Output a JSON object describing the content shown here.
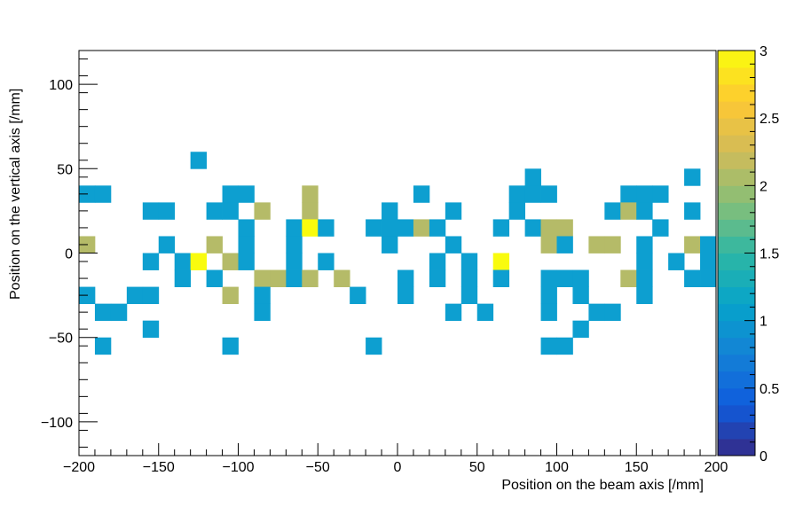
{
  "chart_data": {
    "type": "heatmap",
    "title": "",
    "xlabel": "Position on the beam axis [/mm]",
    "ylabel": "Position on the vertical axis [/mm]",
    "xlim": [
      -200,
      200
    ],
    "ylim": [
      -120,
      120
    ],
    "bin_width": 10,
    "bin_height": 10,
    "x_ticks": [
      -200,
      -150,
      -100,
      -50,
      0,
      50,
      100,
      150,
      200
    ],
    "x_tick_labels": [
      "−200",
      "−150",
      "−100",
      "−50",
      "0",
      "50",
      "100",
      "150",
      "200"
    ],
    "y_ticks": [
      -100,
      -50,
      0,
      50,
      100
    ],
    "y_tick_labels": [
      "−100",
      "−50",
      "0",
      "50",
      "100"
    ],
    "colorbar": {
      "range": [
        0,
        3
      ],
      "ticks": [
        0,
        0.5,
        1,
        1.5,
        2,
        2.5,
        3
      ],
      "tick_labels": [
        "0",
        "0.5",
        "1",
        "1.5",
        "2",
        "2.5",
        "3"
      ],
      "palette": [
        "#352a87",
        "#0f5cdd",
        "#1481d6",
        "#06a4ca",
        "#2eb7a4",
        "#87bf77",
        "#d1bb59",
        "#fec832",
        "#f9fb0e"
      ]
    },
    "colors": {
      "count_1": "#0d9fd0",
      "count_2": "#b5bb68",
      "count_3": "#f9fb0e"
    },
    "cells": [
      {
        "x": -125,
        "y": 55,
        "v": 1
      },
      {
        "x": 185,
        "y": 45,
        "v": 1
      },
      {
        "x": 85,
        "y": 45,
        "v": 1
      },
      {
        "x": -195,
        "y": 35,
        "v": 1
      },
      {
        "x": -185,
        "y": 35,
        "v": 1
      },
      {
        "x": -105,
        "y": 35,
        "v": 1
      },
      {
        "x": -95,
        "y": 35,
        "v": 1
      },
      {
        "x": -55,
        "y": 35,
        "v": 2
      },
      {
        "x": 15,
        "y": 35,
        "v": 1
      },
      {
        "x": 75,
        "y": 35,
        "v": 1
      },
      {
        "x": 85,
        "y": 35,
        "v": 1
      },
      {
        "x": 95,
        "y": 35,
        "v": 1
      },
      {
        "x": 145,
        "y": 35,
        "v": 1
      },
      {
        "x": 155,
        "y": 35,
        "v": 1
      },
      {
        "x": 165,
        "y": 35,
        "v": 1
      },
      {
        "x": -155,
        "y": 25,
        "v": 1
      },
      {
        "x": -145,
        "y": 25,
        "v": 1
      },
      {
        "x": -115,
        "y": 25,
        "v": 1
      },
      {
        "x": -105,
        "y": 25,
        "v": 1
      },
      {
        "x": -85,
        "y": 25,
        "v": 2
      },
      {
        "x": -55,
        "y": 25,
        "v": 2
      },
      {
        "x": -5,
        "y": 25,
        "v": 1
      },
      {
        "x": 35,
        "y": 25,
        "v": 1
      },
      {
        "x": 75,
        "y": 25,
        "v": 1
      },
      {
        "x": 135,
        "y": 25,
        "v": 1
      },
      {
        "x": 145,
        "y": 25,
        "v": 2
      },
      {
        "x": 155,
        "y": 25,
        "v": 1
      },
      {
        "x": 185,
        "y": 25,
        "v": 1
      },
      {
        "x": -95,
        "y": 15,
        "v": 1
      },
      {
        "x": -65,
        "y": 15,
        "v": 1
      },
      {
        "x": -55,
        "y": 15,
        "v": 3
      },
      {
        "x": -45,
        "y": 15,
        "v": 1
      },
      {
        "x": -15,
        "y": 15,
        "v": 1
      },
      {
        "x": -5,
        "y": 15,
        "v": 1
      },
      {
        "x": 5,
        "y": 15,
        "v": 1
      },
      {
        "x": 15,
        "y": 15,
        "v": 2
      },
      {
        "x": 25,
        "y": 15,
        "v": 1
      },
      {
        "x": 65,
        "y": 15,
        "v": 1
      },
      {
        "x": 85,
        "y": 15,
        "v": 1
      },
      {
        "x": 95,
        "y": 15,
        "v": 2
      },
      {
        "x": 105,
        "y": 15,
        "v": 2
      },
      {
        "x": 165,
        "y": 15,
        "v": 1
      },
      {
        "x": -195,
        "y": 5,
        "v": 2
      },
      {
        "x": -145,
        "y": 5,
        "v": 1
      },
      {
        "x": -115,
        "y": 5,
        "v": 2
      },
      {
        "x": -95,
        "y": 5,
        "v": 1
      },
      {
        "x": -65,
        "y": 5,
        "v": 1
      },
      {
        "x": -5,
        "y": 5,
        "v": 1
      },
      {
        "x": 35,
        "y": 5,
        "v": 1
      },
      {
        "x": 95,
        "y": 5,
        "v": 2
      },
      {
        "x": 105,
        "y": 5,
        "v": 1
      },
      {
        "x": 125,
        "y": 5,
        "v": 2
      },
      {
        "x": 135,
        "y": 5,
        "v": 2
      },
      {
        "x": 155,
        "y": 5,
        "v": 1
      },
      {
        "x": 185,
        "y": 5,
        "v": 2
      },
      {
        "x": 195,
        "y": 5,
        "v": 1
      },
      {
        "x": -155,
        "y": -5,
        "v": 1
      },
      {
        "x": -135,
        "y": -5,
        "v": 1
      },
      {
        "x": -125,
        "y": -5,
        "v": 3
      },
      {
        "x": -105,
        "y": -5,
        "v": 2
      },
      {
        "x": -95,
        "y": -5,
        "v": 1
      },
      {
        "x": -65,
        "y": -5,
        "v": 1
      },
      {
        "x": -45,
        "y": -5,
        "v": 1
      },
      {
        "x": 25,
        "y": -5,
        "v": 1
      },
      {
        "x": 45,
        "y": -5,
        "v": 1
      },
      {
        "x": 65,
        "y": -5,
        "v": 3
      },
      {
        "x": 155,
        "y": -5,
        "v": 1
      },
      {
        "x": 175,
        "y": -5,
        "v": 1
      },
      {
        "x": 195,
        "y": -5,
        "v": 1
      },
      {
        "x": -135,
        "y": -15,
        "v": 1
      },
      {
        "x": -115,
        "y": -15,
        "v": 1
      },
      {
        "x": -85,
        "y": -15,
        "v": 2
      },
      {
        "x": -75,
        "y": -15,
        "v": 2
      },
      {
        "x": -65,
        "y": -15,
        "v": 1
      },
      {
        "x": -55,
        "y": -15,
        "v": 2
      },
      {
        "x": -35,
        "y": -15,
        "v": 2
      },
      {
        "x": 5,
        "y": -15,
        "v": 1
      },
      {
        "x": 25,
        "y": -15,
        "v": 1
      },
      {
        "x": 45,
        "y": -15,
        "v": 1
      },
      {
        "x": 65,
        "y": -15,
        "v": 1
      },
      {
        "x": 95,
        "y": -15,
        "v": 1
      },
      {
        "x": 105,
        "y": -15,
        "v": 1
      },
      {
        "x": 115,
        "y": -15,
        "v": 1
      },
      {
        "x": 145,
        "y": -15,
        "v": 2
      },
      {
        "x": 155,
        "y": -15,
        "v": 1
      },
      {
        "x": 185,
        "y": -15,
        "v": 1
      },
      {
        "x": 195,
        "y": -15,
        "v": 1
      },
      {
        "x": -195,
        "y": -25,
        "v": 1
      },
      {
        "x": -165,
        "y": -25,
        "v": 1
      },
      {
        "x": -155,
        "y": -25,
        "v": 1
      },
      {
        "x": -105,
        "y": -25,
        "v": 2
      },
      {
        "x": -85,
        "y": -25,
        "v": 1
      },
      {
        "x": -25,
        "y": -25,
        "v": 1
      },
      {
        "x": 5,
        "y": -25,
        "v": 1
      },
      {
        "x": 45,
        "y": -25,
        "v": 1
      },
      {
        "x": 95,
        "y": -25,
        "v": 1
      },
      {
        "x": 115,
        "y": -25,
        "v": 1
      },
      {
        "x": 155,
        "y": -25,
        "v": 1
      },
      {
        "x": -185,
        "y": -35,
        "v": 1
      },
      {
        "x": -175,
        "y": -35,
        "v": 1
      },
      {
        "x": -85,
        "y": -35,
        "v": 1
      },
      {
        "x": 35,
        "y": -35,
        "v": 1
      },
      {
        "x": 55,
        "y": -35,
        "v": 1
      },
      {
        "x": 95,
        "y": -35,
        "v": 1
      },
      {
        "x": 125,
        "y": -35,
        "v": 1
      },
      {
        "x": 135,
        "y": -35,
        "v": 1
      },
      {
        "x": -155,
        "y": -45,
        "v": 1
      },
      {
        "x": 115,
        "y": -45,
        "v": 1
      },
      {
        "x": -185,
        "y": -55,
        "v": 1
      },
      {
        "x": -105,
        "y": -55,
        "v": 1
      },
      {
        "x": -15,
        "y": -55,
        "v": 1
      },
      {
        "x": 95,
        "y": -55,
        "v": 1
      },
      {
        "x": 105,
        "y": -55,
        "v": 1
      }
    ]
  }
}
